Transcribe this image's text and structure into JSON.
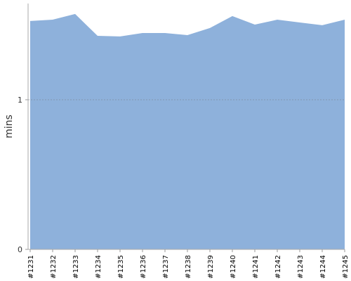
{
  "chart_data": {
    "type": "area",
    "y_label": "mins",
    "categories": [
      "#1231",
      "#1232",
      "#1233",
      "#1234",
      "#1235",
      "#1236",
      "#1237",
      "#1238",
      "#1239",
      "#1240",
      "#1241",
      "#1242",
      "#1243",
      "#1244",
      "#1245"
    ],
    "series": [
      {
        "color": "#8eb1db",
        "values": [
          1.526,
          1.535,
          1.573,
          1.427,
          1.423,
          1.446,
          1.446,
          1.432,
          1.479,
          1.559,
          1.502,
          1.535,
          1.516,
          1.498,
          1.535
        ]
      }
    ],
    "ylim": [
      0,
      1.643
    ],
    "yticks": [
      0,
      1
    ],
    "grid": true
  }
}
